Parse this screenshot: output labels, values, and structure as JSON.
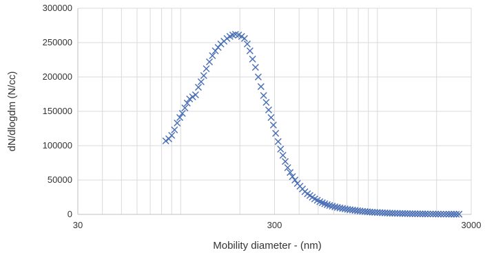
{
  "chart_data": {
    "type": "scatter",
    "title": "",
    "xlabel": "Mobility diameter - (nm)",
    "ylabel": "dN/dlogdm (N/cc)",
    "xscale": "log",
    "xlim": [
      30,
      3000
    ],
    "ylim": [
      0,
      300000
    ],
    "x_ticks": [
      30,
      300,
      3000
    ],
    "x_tick_labels": [
      "30",
      "300",
      "3000"
    ],
    "y_ticks": [
      0,
      50000,
      100000,
      150000,
      200000,
      250000,
      300000
    ],
    "y_tick_labels": [
      "0",
      "50000",
      "100000",
      "150000",
      "200000",
      "250000",
      "300000"
    ],
    "grid": true,
    "marker": "x",
    "marker_color": "#4a6fb5",
    "series": [
      {
        "x": [
          84,
          87,
          90,
          93,
          96,
          99,
          102,
          105,
          108,
          111,
          115,
          119,
          123,
          127,
          131,
          135,
          140,
          145,
          150,
          155,
          160,
          166,
          172,
          178,
          184,
          190,
          197,
          204,
          211,
          218,
          225,
          232,
          240,
          248,
          256,
          264,
          272,
          280,
          288,
          296,
          304,
          313,
          322,
          331,
          340,
          350,
          360,
          370,
          381,
          392,
          404,
          416,
          428,
          441,
          454,
          467,
          480,
          495,
          510,
          525,
          540,
          556,
          572,
          590,
          608,
          626,
          645,
          665,
          685,
          705,
          726,
          748,
          770,
          793,
          816,
          840,
          865,
          890,
          916,
          943,
          970,
          1000,
          1030,
          1060,
          1092,
          1124,
          1157,
          1192,
          1228,
          1265,
          1303,
          1342,
          1382,
          1423,
          1465,
          1509,
          1555,
          1601,
          1650,
          1700,
          1750,
          1800,
          1860,
          1920,
          1980,
          2040,
          2100,
          2170,
          2240,
          2310,
          2380,
          2450,
          2520,
          2600
        ],
        "y": [
          107000,
          110000,
          115000,
          123000,
          133000,
          141000,
          147000,
          155000,
          162000,
          168000,
          171000,
          174000,
          185000,
          193000,
          202000,
          212000,
          222000,
          231000,
          238000,
          243000,
          248000,
          252000,
          256000,
          259000,
          261000,
          262000,
          261000,
          259000,
          256000,
          248000,
          238000,
          226000,
          214000,
          200000,
          186000,
          173000,
          163000,
          152000,
          141000,
          130000,
          118000,
          106000,
          95000,
          86000,
          77000,
          68000,
          61000,
          55000,
          50000,
          45000,
          41000,
          37000,
          33000,
          30000,
          27500,
          25000,
          22500,
          20500,
          18500,
          17000,
          15500,
          14200,
          13000,
          12000,
          11000,
          10200,
          9400,
          8700,
          8000,
          7400,
          6800,
          6300,
          5800,
          5300,
          4900,
          4500,
          4200,
          3800,
          3500,
          3200,
          3000,
          2800,
          2600,
          2400,
          2200,
          2000,
          1800,
          1700,
          1600,
          1500,
          1400,
          1300,
          1200,
          1100,
          1000,
          950,
          900,
          850,
          800,
          750,
          700,
          650,
          600,
          550,
          500,
          450,
          400,
          380,
          360,
          340,
          320,
          300,
          280,
          300
        ]
      }
    ]
  }
}
